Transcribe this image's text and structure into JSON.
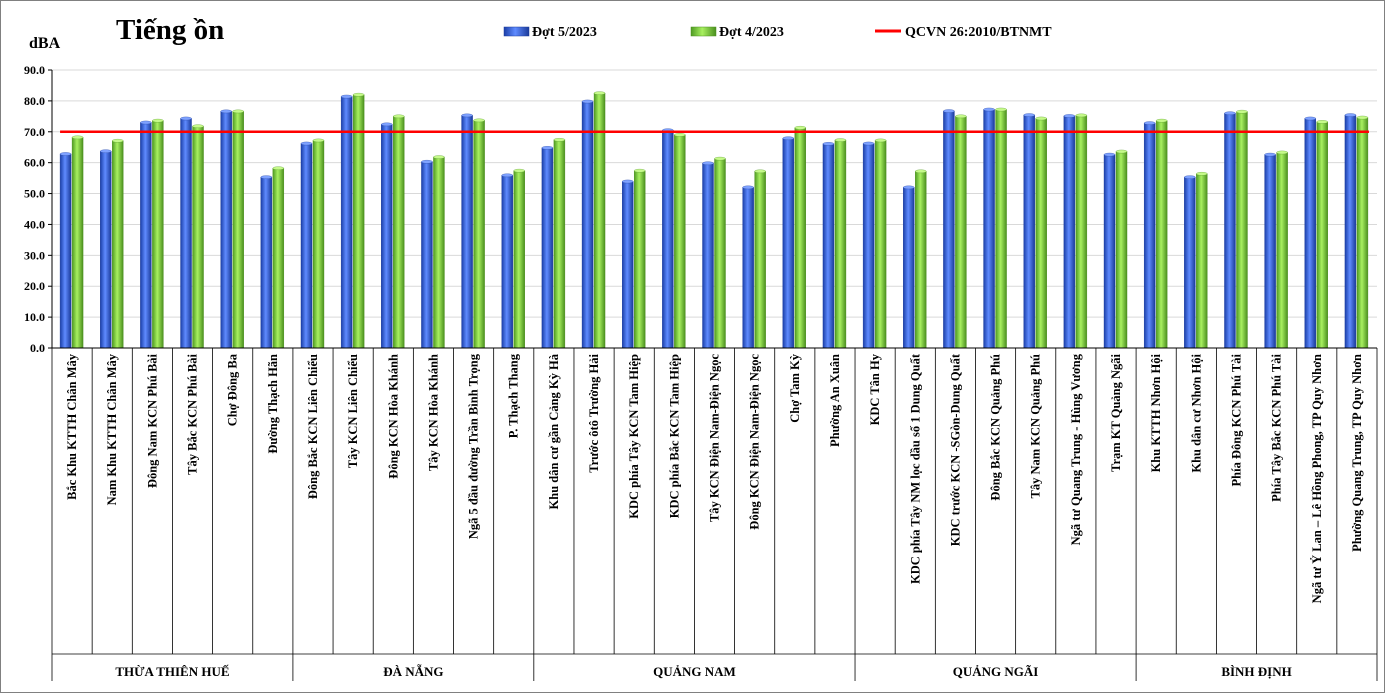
{
  "chart_data": {
    "type": "bar",
    "title": "Tiếng ồn",
    "ylabel": "dBA",
    "xlabel": "",
    "ylim": [
      0,
      90
    ],
    "yticks": [
      "0.0",
      "10.0",
      "20.0",
      "30.0",
      "40.0",
      "50.0",
      "60.0",
      "70.0",
      "80.0",
      "90.0"
    ],
    "grid": "horizontal",
    "legend_position": "top",
    "categories": [
      "Bắc Khu KTTH Chân Mây",
      "Nam Khu KTTH Chân Mây",
      "Đông Nam KCN Phú Bài",
      "Tây Bắc KCN Phú Bài",
      "Chợ Đông Ba",
      "Đường Thạch Hãn",
      "Đông Bắc KCN Liên Chiểu",
      "Tây KCN Liên Chiểu",
      "Đông KCN Hòa Khánh",
      "Tây KCN Hòa Khánh",
      "Ngã 5 đầu đường Trần Bình Trọng",
      "P. Thạch Thang",
      "Khu dân cư gần Cảng Kỳ Hà",
      "Trước ôtô Trường Hải",
      "KDC phía Tây KCN Tam Hiệp",
      "KDC phía Bắc KCN Tam Hiệp",
      "Tây KCN Điện Nam-Điện Ngọc",
      "Đông KCN Điện Nam-Điện Ngọc",
      "Chợ Tam Kỳ",
      "Phường An Xuân",
      "KDC Tân Hy",
      "KDC phía Tây NM lọc dầu số 1 Dung Quất",
      "KDC trước KCN -SGòn-Dung Quất",
      "Đông Bắc KCN Quảng Phú",
      "Tây Nam KCN Quảng Phú",
      "Ngã tư Quang Trung - Hùng Vương",
      "Trạm KT Quảng Ngãi",
      "Khu KTTH Nhơn Hội",
      "Khu dân cư Nhơn Hội",
      "Phía Đông KCN Phú Tài",
      "Phía Tây Bắc KCN Phú Tài",
      "Ngã tư Ỷ Lan – Lê Hồng Phong, TP Quy Nhơn",
      "Phường Quang Trung, TP Quy Nhơn"
    ],
    "series": [
      {
        "name": "Đợt 5/2023",
        "color": "#2F5BD6",
        "values": [
          62.8,
          63.7,
          73.0,
          74.3,
          76.6,
          55.3,
          66.2,
          81.4,
          72.4,
          60.3,
          75.3,
          55.9,
          64.8,
          79.8,
          53.9,
          70.5,
          59.8,
          52.0,
          67.9,
          66.1,
          66.2,
          52.0,
          76.7,
          77.2,
          75.4,
          75.1,
          62.6,
          72.8,
          55.3,
          76.0,
          62.6,
          74.3,
          75.4
        ]
      },
      {
        "name": "Đợt 4/2023",
        "color": "#7CCB3A",
        "values": [
          68.2,
          67.1,
          73.6,
          71.8,
          76.6,
          58.2,
          67.2,
          82.0,
          75.0,
          61.8,
          73.7,
          57.4,
          67.4,
          82.5,
          57.4,
          69.0,
          61.3,
          57.2,
          71.3,
          67.3,
          67.2,
          57.2,
          75.0,
          77.2,
          74.3,
          75.3,
          63.6,
          73.6,
          56.4,
          76.5,
          63.3,
          73.2,
          74.6
        ]
      }
    ],
    "reference_line": {
      "name": "QCVN 26:2010/BTNMT",
      "value": 70,
      "color": "#FF0000"
    },
    "groups": [
      {
        "label": "THỪA THIÊN HUẾ",
        "count": 6
      },
      {
        "label": "ĐÀ NẴNG",
        "count": 6
      },
      {
        "label": "QUẢNG NAM",
        "count": 8
      },
      {
        "label": "QUẢNG NGÃI",
        "count": 7
      },
      {
        "label": "BÌNH ĐỊNH",
        "count": 6
      }
    ]
  }
}
